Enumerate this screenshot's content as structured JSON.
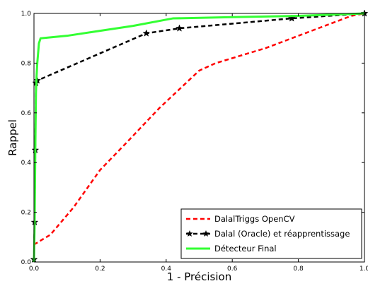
{
  "chart_data": {
    "type": "line",
    "title": "",
    "xlabel": "1 - Précision",
    "ylabel": "Rappel",
    "xlim": [
      0,
      1
    ],
    "ylim": [
      0,
      1
    ],
    "xticks": [
      0,
      0.2,
      0.4,
      0.6,
      0.8,
      1
    ],
    "yticks": [
      0,
      0.2,
      0.4,
      0.6,
      0.8,
      1
    ],
    "xtick_labels": [
      "0.0",
      "0.2",
      "0.4",
      "0.6",
      "0.8",
      "1.0"
    ],
    "ytick_labels": [
      "0.0",
      "0.2",
      "0.4",
      "0.6",
      "0.8",
      "1.0"
    ],
    "grid": false,
    "legend_position": "bottom-right",
    "series": [
      {
        "name": "DalalTriggs OpenCV",
        "color": "#ff0000",
        "line_style": "dashed",
        "marker": "none",
        "x": [
          0.0,
          0.05,
          0.12,
          0.2,
          0.28,
          0.38,
          0.5,
          0.55,
          0.7,
          0.8,
          0.9,
          0.96,
          1.0
        ],
        "y": [
          0.07,
          0.11,
          0.22,
          0.37,
          0.48,
          0.62,
          0.77,
          0.8,
          0.86,
          0.91,
          0.96,
          0.99,
          1.0
        ]
      },
      {
        "name": "Dalal (Oracle) et réapprentissage",
        "color": "#000000",
        "line_style": "dashed",
        "marker": "star",
        "x": [
          0.0,
          0.002,
          0.004,
          0.006,
          0.01,
          0.34,
          0.44,
          0.78,
          1.0
        ],
        "y": [
          0.01,
          0.16,
          0.45,
          0.72,
          0.73,
          0.92,
          0.94,
          0.98,
          1.0
        ]
      },
      {
        "name": "Détecteur Final",
        "color": "#33ff33",
        "line_style": "solid",
        "marker": "none",
        "x": [
          0.0,
          0.002,
          0.004,
          0.006,
          0.008,
          0.01,
          0.015,
          0.02,
          0.1,
          0.2,
          0.3,
          0.42,
          0.6,
          0.8,
          1.0
        ],
        "y": [
          0.0,
          0.15,
          0.45,
          0.68,
          0.75,
          0.8,
          0.88,
          0.9,
          0.91,
          0.93,
          0.95,
          0.98,
          0.985,
          0.99,
          1.0
        ]
      }
    ]
  }
}
